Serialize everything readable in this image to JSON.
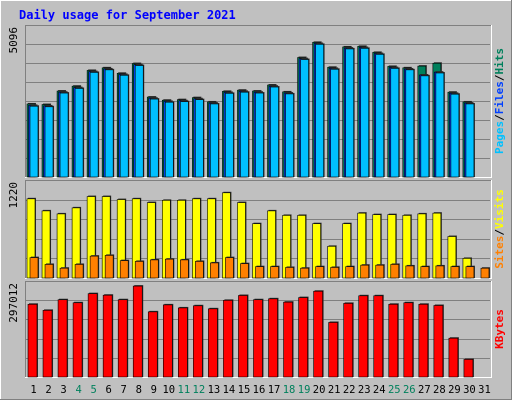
{
  "title": "Daily usage for September 2021",
  "colors": {
    "background": "#c0c0c0",
    "panel": "#c0c0c0",
    "grid": "#808080",
    "title": "#0000ff",
    "hits": "#00805c",
    "files": "#0040ff",
    "pages": "#00c0ff",
    "visits": "#ffff00",
    "sites": "#ff8000",
    "kbytes": "#ff0000",
    "weekend_day": "#00805c",
    "weekday_day": "#000000"
  },
  "weekend_days": [
    4,
    5,
    11,
    12,
    18,
    19,
    25,
    26
  ],
  "chart_data": [
    {
      "type": "bar",
      "panel": "hits-files-pages",
      "ymax_label": "5096",
      "ylim": [
        0,
        5096
      ],
      "legend": [
        "Pages",
        "Files",
        "Hits"
      ],
      "categories": [
        "1",
        "2",
        "3",
        "4",
        "5",
        "6",
        "7",
        "8",
        "9",
        "10",
        "11",
        "12",
        "13",
        "14",
        "15",
        "16",
        "17",
        "18",
        "19",
        "20",
        "21",
        "22",
        "23",
        "24",
        "25",
        "26",
        "27",
        "28",
        "29",
        "30",
        "31"
      ],
      "series": [
        {
          "name": "Hits",
          "values": [
            2550,
            2530,
            3000,
            3170,
            3720,
            3810,
            3620,
            3960,
            2790,
            2680,
            2700,
            2770,
            2620,
            2990,
            3030,
            3000,
            3210,
            2970,
            4170,
            4700,
            3830,
            4540,
            4560,
            4350,
            3860,
            3810,
            3870,
            3970,
            2960,
            2620,
            0
          ]
        },
        {
          "name": "Files",
          "values": [
            2500,
            2480,
            2960,
            3120,
            3680,
            3770,
            3580,
            3920,
            2750,
            2640,
            2660,
            2730,
            2580,
            2950,
            2990,
            2960,
            3170,
            2930,
            4130,
            4660,
            3790,
            4500,
            4520,
            4310,
            3820,
            3770,
            3560,
            3660,
            2920,
            2580,
            0
          ]
        },
        {
          "name": "Pages",
          "values": [
            2470,
            2450,
            2930,
            3090,
            3650,
            3740,
            3550,
            3890,
            2720,
            2610,
            2630,
            2700,
            2550,
            2920,
            2960,
            2930,
            3140,
            2900,
            4100,
            4630,
            3760,
            4470,
            4490,
            4280,
            3790,
            3740,
            3530,
            3630,
            2890,
            2550,
            0
          ]
        }
      ]
    },
    {
      "type": "bar",
      "panel": "visits-sites",
      "ymax_label": "1220",
      "ylim": [
        0,
        1220
      ],
      "legend": [
        "Sites",
        "Visits"
      ],
      "categories": [
        "1",
        "2",
        "3",
        "4",
        "5",
        "6",
        "7",
        "8",
        "9",
        "10",
        "11",
        "12",
        "13",
        "14",
        "15",
        "16",
        "17",
        "18",
        "19",
        "20",
        "21",
        "22",
        "23",
        "24",
        "25",
        "26",
        "27",
        "28",
        "29",
        "30",
        "31"
      ],
      "series": [
        {
          "name": "Visits",
          "values": [
            1050,
            890,
            850,
            930,
            1080,
            1080,
            1040,
            1050,
            1000,
            1030,
            1030,
            1050,
            1050,
            1130,
            1000,
            720,
            890,
            830,
            830,
            720,
            420,
            720,
            860,
            840,
            840,
            830,
            850,
            860,
            550,
            260,
            0
          ]
        },
        {
          "name": "Sites",
          "values": [
            270,
            180,
            130,
            180,
            290,
            300,
            230,
            220,
            240,
            250,
            240,
            220,
            200,
            270,
            190,
            150,
            150,
            140,
            130,
            150,
            140,
            150,
            170,
            170,
            180,
            160,
            150,
            160,
            150,
            150,
            130
          ]
        }
      ]
    },
    {
      "type": "bar",
      "panel": "kbytes",
      "ymax_label": "297012",
      "ylim": [
        0,
        297012
      ],
      "legend": [
        "KBytes"
      ],
      "categories": [
        "1",
        "2",
        "3",
        "4",
        "5",
        "6",
        "7",
        "8",
        "9",
        "10",
        "11",
        "12",
        "13",
        "14",
        "15",
        "16",
        "17",
        "18",
        "19",
        "20",
        "21",
        "22",
        "23",
        "24",
        "25",
        "26",
        "27",
        "28",
        "29",
        "30",
        "31"
      ],
      "series": [
        {
          "name": "KBytes",
          "values": [
            240000,
            220000,
            255000,
            245000,
            275000,
            270000,
            255000,
            300000,
            215000,
            238000,
            228000,
            235000,
            225000,
            253000,
            269000,
            255000,
            258000,
            247000,
            262000,
            283000,
            180000,
            243000,
            268000,
            268000,
            240000,
            245000,
            240000,
            236000,
            128000,
            58000,
            0
          ]
        }
      ]
    }
  ]
}
